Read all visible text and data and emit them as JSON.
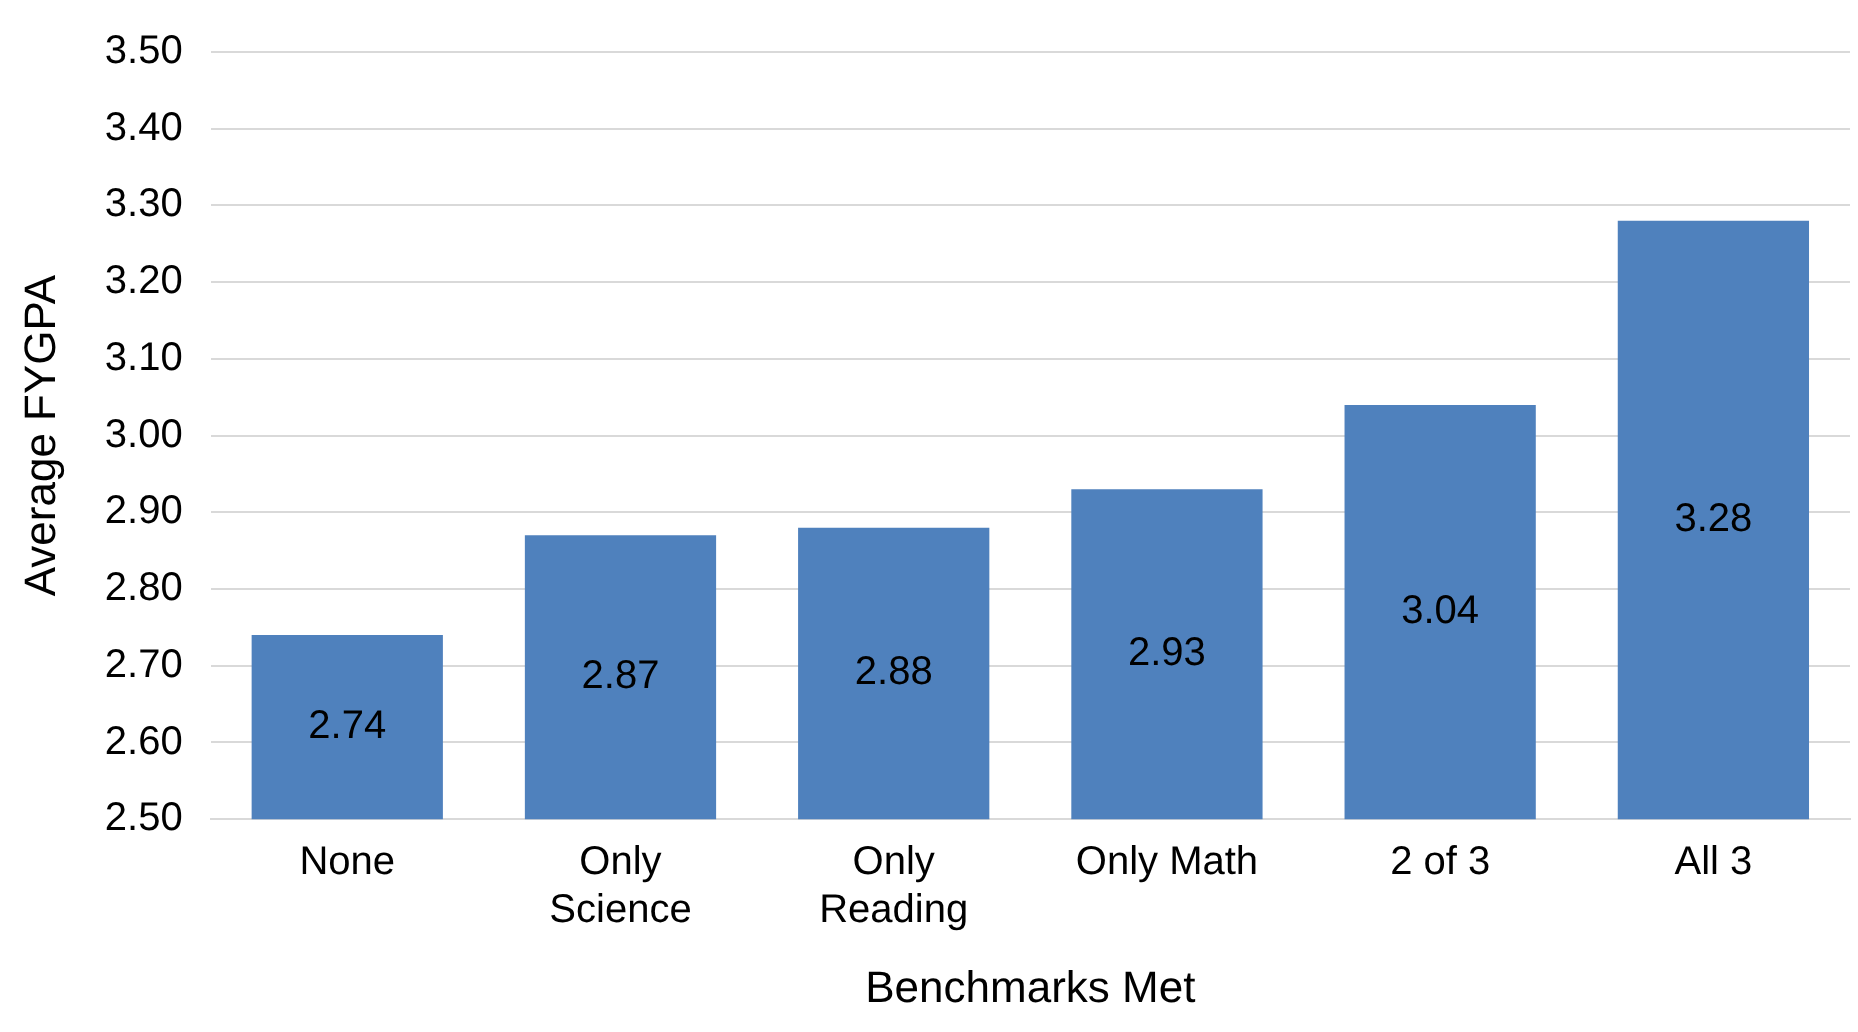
{
  "chart_data": {
    "type": "bar",
    "xlabel": "Benchmarks Met",
    "ylabel": "Average FYGPA",
    "categories": [
      "None",
      "Only Science",
      "Only Reading",
      "Only Math",
      "2 of 3",
      "All 3"
    ],
    "values": [
      2.74,
      2.87,
      2.88,
      2.93,
      3.04,
      3.28
    ],
    "color": "#4f81bd",
    "ylim": [
      2.5,
      3.5
    ],
    "yticks": [
      {
        "value": 2.5,
        "label": "2.50"
      },
      {
        "value": 2.6,
        "label": "2.60"
      },
      {
        "value": 2.7,
        "label": "2.70"
      },
      {
        "value": 2.8,
        "label": "2.80"
      },
      {
        "value": 2.9,
        "label": "2.90"
      },
      {
        "value": 3.0,
        "label": "3.00"
      },
      {
        "value": 3.1,
        "label": "3.10"
      },
      {
        "value": 3.2,
        "label": "3.20"
      },
      {
        "value": 3.3,
        "label": "3.30"
      },
      {
        "value": 3.4,
        "label": "3.40"
      },
      {
        "value": 3.5,
        "label": "3.50"
      }
    ],
    "grid": "y",
    "data_labels": true
  }
}
